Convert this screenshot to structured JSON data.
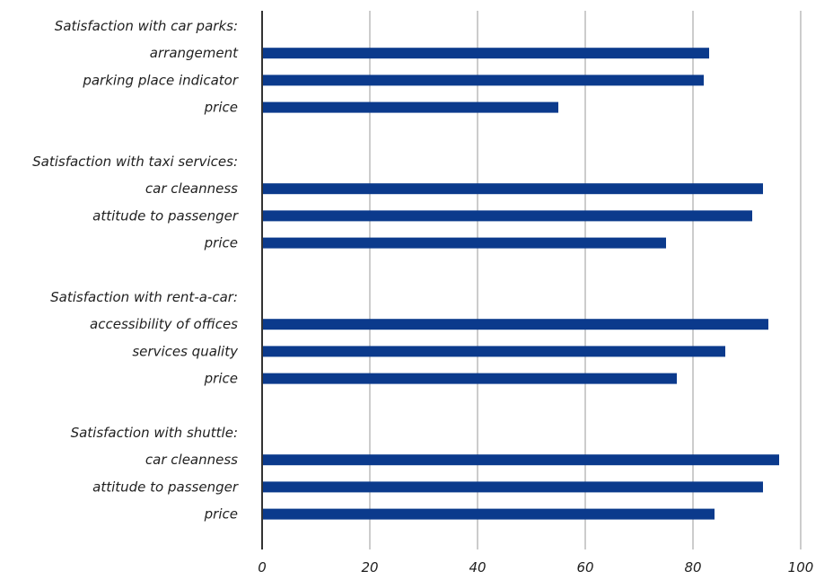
{
  "chart_data": {
    "type": "bar",
    "orientation": "horizontal",
    "xlim": [
      0,
      100
    ],
    "xticks": [
      0,
      20,
      40,
      60,
      80,
      100
    ],
    "grid": true,
    "bar_color": "#0b3a8c",
    "rows": [
      {
        "kind": "group",
        "label": "Satisfaction with car parks:"
      },
      {
        "kind": "bar",
        "label": "arrangement",
        "value": 83
      },
      {
        "kind": "bar",
        "label": "parking place indicator",
        "value": 82
      },
      {
        "kind": "bar",
        "label": "price",
        "value": 55
      },
      {
        "kind": "spacer"
      },
      {
        "kind": "group",
        "label": "Satisfaction with taxi services:"
      },
      {
        "kind": "bar",
        "label": "car cleanness",
        "value": 93
      },
      {
        "kind": "bar",
        "label": "attitude to passenger",
        "value": 91
      },
      {
        "kind": "bar",
        "label": "price",
        "value": 75
      },
      {
        "kind": "spacer"
      },
      {
        "kind": "group",
        "label": "Satisfaction with rent-a-car:"
      },
      {
        "kind": "bar",
        "label": "accessibility of offices",
        "value": 94
      },
      {
        "kind": "bar",
        "label": "services quality",
        "value": 86
      },
      {
        "kind": "bar",
        "label": "price",
        "value": 77
      },
      {
        "kind": "spacer"
      },
      {
        "kind": "group",
        "label": "Satisfaction with shuttle:"
      },
      {
        "kind": "bar",
        "label": "car cleanness",
        "value": 96
      },
      {
        "kind": "bar",
        "label": "attitude to passenger",
        "value": 93
      },
      {
        "kind": "bar",
        "label": "price",
        "value": 84
      }
    ]
  }
}
